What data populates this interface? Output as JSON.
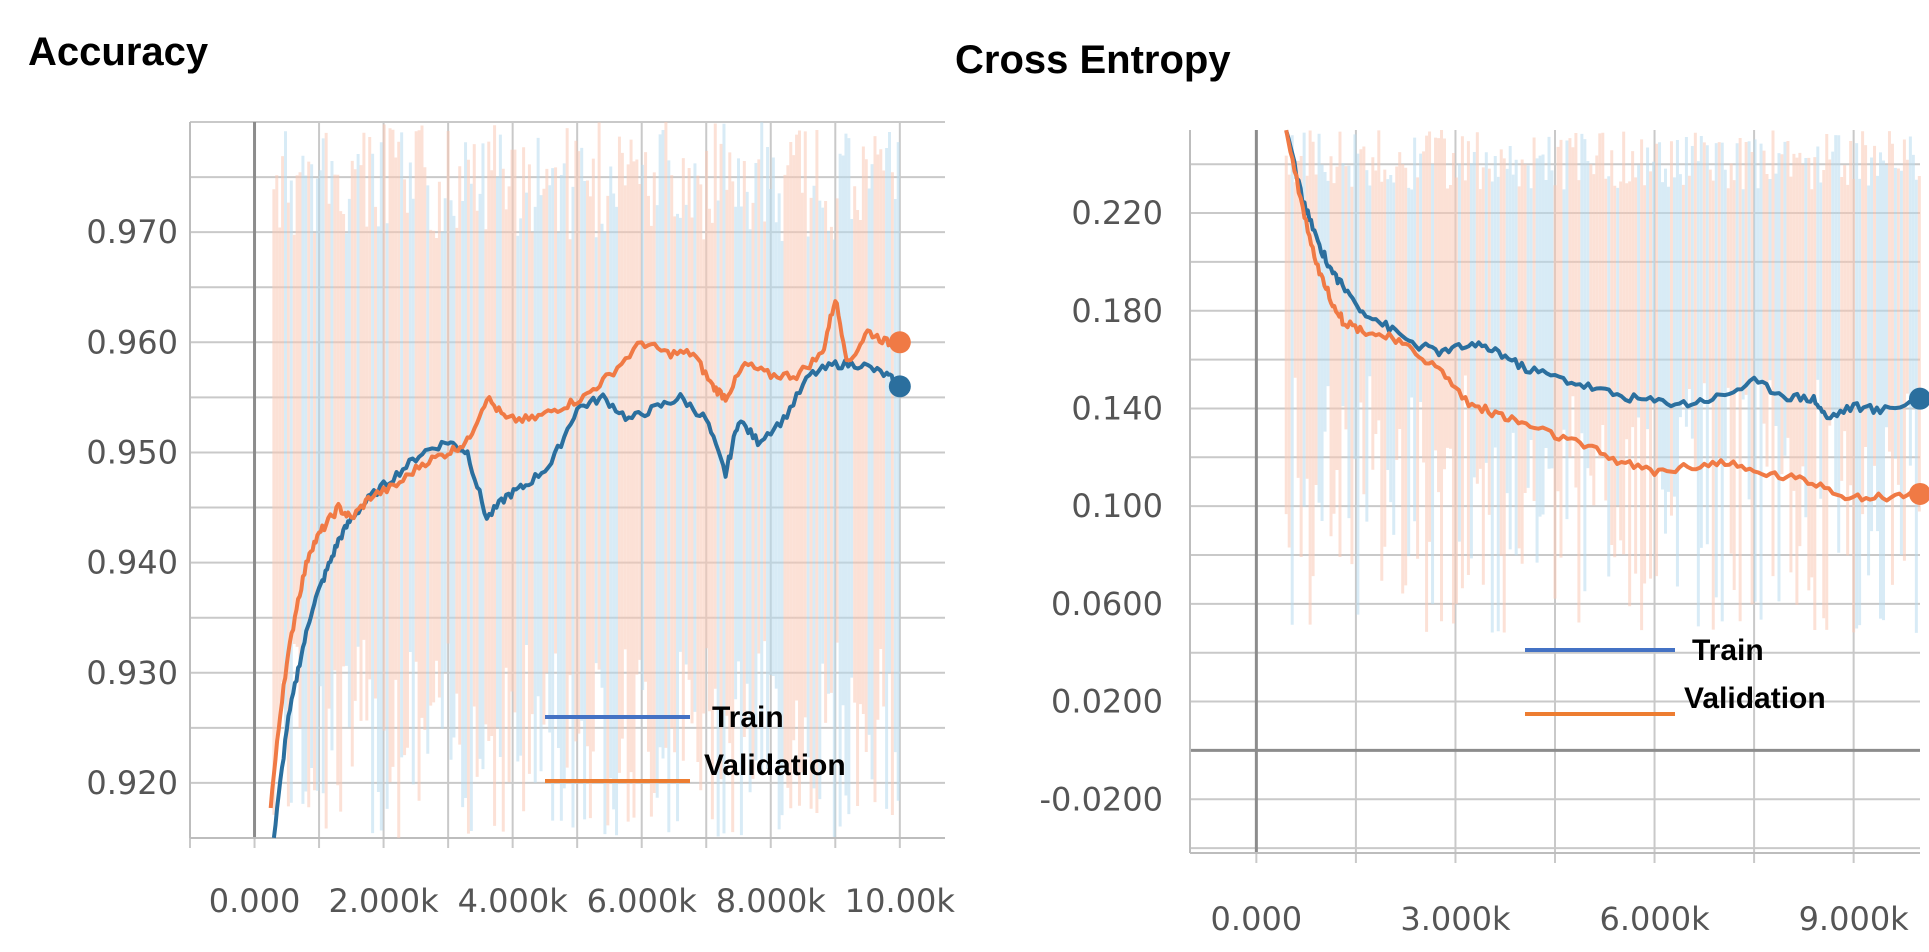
{
  "chart_data": [
    {
      "type": "line",
      "title": "Accuracy",
      "xlabel": "",
      "ylabel": "",
      "xlim": [
        -1000,
        10700
      ],
      "ylim": [
        0.915,
        0.98
      ],
      "x_ticks": [
        0,
        2000,
        4000,
        6000,
        8000,
        10000
      ],
      "x_tick_labels": [
        "0.000",
        "2.000k",
        "4.000k",
        "6.000k",
        "8.000k",
        "10.00k"
      ],
      "y_ticks": [
        0.92,
        0.93,
        0.94,
        0.95,
        0.96,
        0.97
      ],
      "y_tick_labels": [
        "0.920",
        "0.930",
        "0.940",
        "0.950",
        "0.960",
        "0.970"
      ],
      "grid": true,
      "legend_position": "bottom-right",
      "series": [
        {
          "name": "Train",
          "color": "#2b6f9e",
          "x": [
            300,
            500,
            700,
            900,
            1100,
            1300,
            1500,
            1800,
            2200,
            2600,
            3000,
            3300,
            3600,
            3900,
            4200,
            4600,
            5000,
            5400,
            5800,
            6200,
            6600,
            7000,
            7300,
            7500,
            7800,
            8200,
            8600,
            9000,
            9400,
            9800,
            10000
          ],
          "y": [
            0.915,
            0.925,
            0.931,
            0.936,
            0.939,
            0.942,
            0.944,
            0.946,
            0.948,
            0.95,
            0.951,
            0.95,
            0.944,
            0.946,
            0.947,
            0.949,
            0.954,
            0.955,
            0.953,
            0.954,
            0.955,
            0.953,
            0.948,
            0.953,
            0.951,
            0.953,
            0.957,
            0.958,
            0.958,
            0.957,
            0.956
          ]
        },
        {
          "name": "Validation",
          "color": "#f07a45",
          "x": [
            250,
            450,
            650,
            850,
            1050,
            1300,
            1500,
            1800,
            2200,
            2600,
            3000,
            3300,
            3600,
            3900,
            4300,
            4700,
            5100,
            5500,
            6000,
            6400,
            6800,
            7100,
            7300,
            7600,
            8000,
            8400,
            8800,
            9000,
            9200,
            9500,
            9800,
            10000
          ],
          "y": [
            0.918,
            0.929,
            0.936,
            0.941,
            0.943,
            0.945,
            0.944,
            0.946,
            0.947,
            0.949,
            0.95,
            0.951,
            0.955,
            0.953,
            0.953,
            0.954,
            0.955,
            0.957,
            0.96,
            0.959,
            0.959,
            0.956,
            0.955,
            0.958,
            0.957,
            0.957,
            0.959,
            0.964,
            0.958,
            0.961,
            0.96,
            0.96
          ]
        }
      ]
    },
    {
      "type": "line",
      "title": "Cross Entropy",
      "xlabel": "",
      "ylabel": "",
      "xlim": [
        -1000,
        10000
      ],
      "ylim": [
        -0.042,
        0.254
      ],
      "x_ticks": [
        0,
        3000,
        6000,
        9000
      ],
      "x_tick_labels": [
        "0.000",
        "3.000k",
        "6.000k",
        "9.000k"
      ],
      "y_ticks": [
        -0.02,
        0.02,
        0.06,
        0.1,
        0.14,
        0.18,
        0.22
      ],
      "y_tick_labels": [
        "-0.0200",
        "0.0200",
        "0.0600",
        "0.100",
        "0.140",
        "0.180",
        "0.220"
      ],
      "grid": true,
      "legend_position": "bottom-right",
      "series": [
        {
          "name": "Train",
          "color": "#2b6f9e",
          "x": [
            450,
            700,
            900,
            1100,
            1300,
            1600,
            2000,
            2400,
            2800,
            3200,
            3600,
            4000,
            4500,
            5000,
            5500,
            6000,
            6500,
            7000,
            7500,
            8000,
            8400,
            8600,
            9000,
            9400,
            10000
          ],
          "y": [
            0.254,
            0.225,
            0.21,
            0.198,
            0.19,
            0.18,
            0.173,
            0.166,
            0.163,
            0.166,
            0.164,
            0.157,
            0.153,
            0.149,
            0.145,
            0.143,
            0.142,
            0.145,
            0.151,
            0.145,
            0.144,
            0.136,
            0.141,
            0.139,
            0.144
          ]
        },
        {
          "name": "Validation",
          "color": "#f07a45",
          "x": [
            450,
            700,
            900,
            1100,
            1300,
            1600,
            2000,
            2400,
            2800,
            3200,
            3600,
            4000,
            4500,
            5000,
            5500,
            6000,
            6500,
            7000,
            7500,
            8000,
            8500,
            9000,
            9500,
            10000
          ],
          "y": [
            0.254,
            0.222,
            0.2,
            0.186,
            0.176,
            0.172,
            0.169,
            0.163,
            0.155,
            0.142,
            0.138,
            0.134,
            0.129,
            0.124,
            0.118,
            0.114,
            0.116,
            0.118,
            0.114,
            0.112,
            0.109,
            0.103,
            0.104,
            0.105
          ]
        }
      ]
    }
  ]
}
